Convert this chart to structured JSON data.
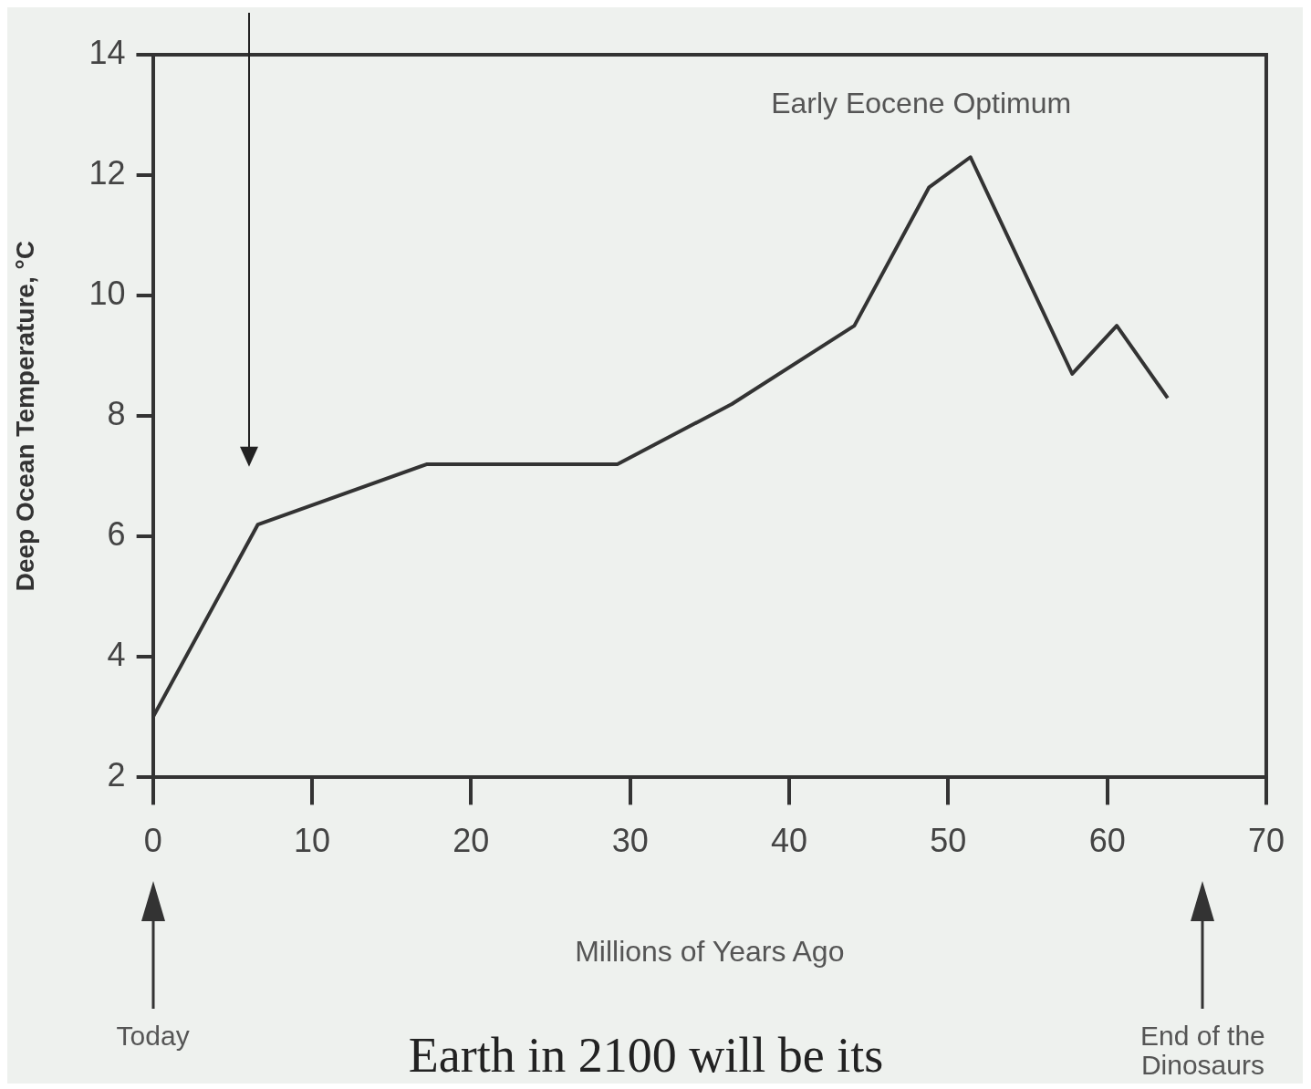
{
  "chart_data": {
    "type": "line",
    "xlabel": "Millions of Years Ago",
    "ylabel": "Deep Ocean Temperature, °C",
    "x": [
      0,
      6.6,
      17.2,
      29.2,
      36.4,
      44.1,
      48.8,
      51.4,
      57.8,
      60.6,
      63.8
    ],
    "series": [
      {
        "color": "#333333",
        "values": [
          3.0,
          6.2,
          7.2,
          7.2,
          8.2,
          9.5,
          11.8,
          12.3,
          8.7,
          9.5,
          8.3
        ]
      }
    ],
    "xlim": [
      0,
      70
    ],
    "xticks": [
      0,
      10,
      20,
      30,
      40,
      50,
      60,
      70
    ],
    "ylim": [
      2,
      14
    ],
    "yticks": [
      2,
      4,
      6,
      8,
      10,
      12,
      14
    ],
    "grid": false,
    "legend": false,
    "marker": "none",
    "line_style": "solid",
    "annotations": [
      "Early Eocene Optimum",
      "Today",
      "End of the Dinosaurs",
      "Earth in 2100 will be its"
    ]
  }
}
